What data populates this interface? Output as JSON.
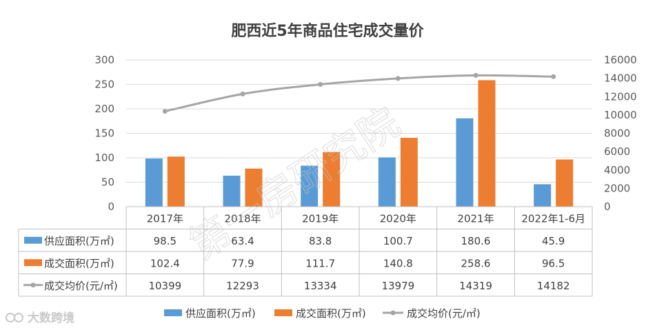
{
  "colors": {
    "supply": "#5b9bd5",
    "deal": "#ed7d31",
    "price": "#a5a5a5",
    "grid": "#d9d9d9"
  },
  "watermark": "第一房研究院",
  "brand": "大数跨境",
  "chart_data": {
    "type": "bar",
    "title": "肥西近5年商品住宅成交量价",
    "categories": [
      "2017年",
      "2018年",
      "2019年",
      "2020年",
      "2021年",
      "2022年1-6月"
    ],
    "series": [
      {
        "name": "供应面积(万㎡)",
        "type": "bar",
        "axis": "left",
        "values": [
          98.5,
          63.4,
          83.8,
          100.7,
          180.6,
          45.9
        ],
        "labels": [
          "98.5",
          "63.4",
          "83.8",
          "100.7",
          "180.6",
          "45.9"
        ]
      },
      {
        "name": "成交面积(万㎡)",
        "type": "bar",
        "axis": "left",
        "values": [
          102.4,
          77.9,
          111.7,
          140.8,
          258.6,
          96.5
        ],
        "labels": [
          "102.4",
          "77.9",
          "111.7",
          "140.8",
          "258.6",
          "96.5"
        ]
      },
      {
        "name": "成交均价(元/㎡)",
        "type": "line",
        "axis": "right",
        "values": [
          10399,
          12293,
          13334,
          13979,
          14319,
          14182
        ],
        "labels": [
          "10399",
          "12293",
          "13334",
          "13979",
          "14319",
          "14182"
        ]
      }
    ],
    "ylim": [
      0,
      300
    ],
    "yticks": [
      "0",
      "50",
      "100",
      "150",
      "200",
      "250",
      "300"
    ],
    "y2lim": [
      0,
      16000
    ],
    "y2ticks": [
      "0",
      "2000",
      "4000",
      "6000",
      "8000",
      "10000",
      "12000",
      "14000",
      "16000"
    ],
    "legend": "bottom",
    "data_table": true
  }
}
